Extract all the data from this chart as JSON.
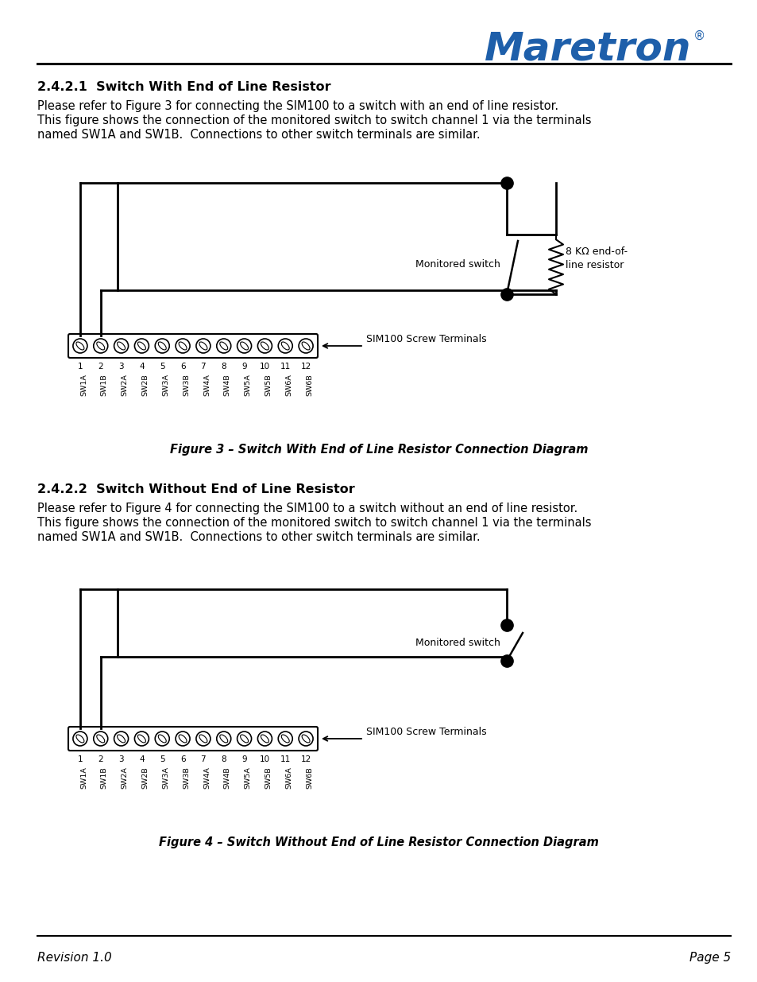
{
  "page_bg": "#ffffff",
  "logo_text": "Maretron",
  "logo_color": "#1e5faa",
  "section1_heading": "2.4.2.1  Switch With End of Line Resistor",
  "section1_body_lines": [
    "Please refer to Figure 3 for connecting the SIM100 to a switch with an end of line resistor.",
    "This figure shows the connection of the monitored switch to switch channel 1 via the terminals",
    "named SW1A and SW1B.  Connections to other switch terminals are similar."
  ],
  "section2_heading": "2.4.2.2  Switch Without End of Line Resistor",
  "section2_body_lines": [
    "Please refer to Figure 4 for connecting the SIM100 to a switch without an end of line resistor.",
    "This figure shows the connection of the monitored switch to switch channel 1 via the terminals",
    "named SW1A and SW1B.  Connections to other switch terminals are similar."
  ],
  "fig3_caption": "Figure 3 – Switch With End of Line Resistor Connection Diagram",
  "fig4_caption": "Figure 4 – Switch Without End of Line Resistor Connection Diagram",
  "footer_left": "Revision 1.0",
  "footer_right": "Page 5",
  "terminal_labels": [
    "SW1A",
    "SW1B",
    "SW2A",
    "SW2B",
    "SW3A",
    "SW3B",
    "SW4A",
    "SW4B",
    "SW5A",
    "SW5B",
    "SW6A",
    "SW6B"
  ],
  "terminal_count": 12,
  "lm": 47,
  "rm": 920
}
